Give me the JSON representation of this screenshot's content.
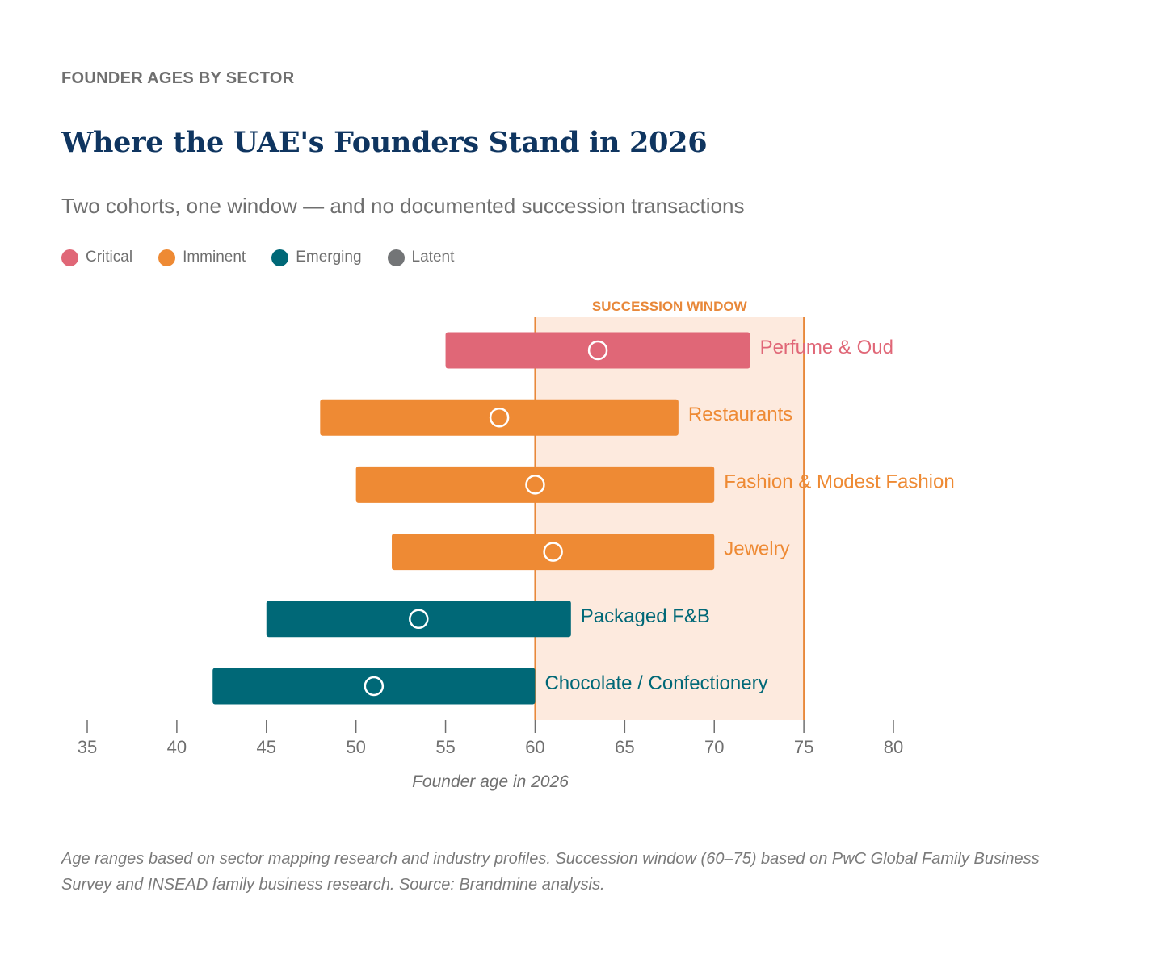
{
  "header": {
    "eyebrow": "FOUNDER AGES BY SECTOR",
    "title": "Where the UAE's Founders Stand in 2026",
    "subtitle": "Two cohorts, one window — and no documented succession transactions"
  },
  "legend": [
    {
      "label": "Critical",
      "color": "#e06777"
    },
    {
      "label": "Imminent",
      "color": "#ee8a34"
    },
    {
      "label": "Emerging",
      "color": "#006877"
    },
    {
      "label": "Latent",
      "color": "#737577"
    }
  ],
  "chart_data": {
    "type": "range-bar",
    "title": "Where the UAE's Founders Stand in 2026",
    "subtitle": "Two cohorts, one window — and no documented succession transactions",
    "xlabel": "Founder age in 2026",
    "xlim": [
      35,
      80
    ],
    "xticks": [
      35,
      40,
      45,
      50,
      55,
      60,
      65,
      70,
      75,
      80
    ],
    "grid": false,
    "legend_position": "top-left",
    "succession_window": {
      "label": "SUCCESSION WINDOW",
      "start": 60,
      "end": 75
    },
    "series": [
      {
        "sector": "Perfume & Oud",
        "category": "Critical",
        "min": 55,
        "max": 72,
        "midpoint": 63.5
      },
      {
        "sector": "Restaurants",
        "category": "Imminent",
        "min": 48,
        "max": 68,
        "midpoint": 58
      },
      {
        "sector": "Fashion & Modest Fashion",
        "category": "Imminent",
        "min": 50,
        "max": 70,
        "midpoint": 60
      },
      {
        "sector": "Jewelry",
        "category": "Imminent",
        "min": 52,
        "max": 70,
        "midpoint": 61
      },
      {
        "sector": "Packaged F&B",
        "category": "Emerging",
        "min": 45,
        "max": 62,
        "midpoint": 53.5
      },
      {
        "sector": "Chocolate / Confectionery",
        "category": "Emerging",
        "min": 42,
        "max": 60,
        "midpoint": 51
      }
    ]
  },
  "colors": {
    "Critical": "#e06777",
    "Imminent": "#ee8a34",
    "Emerging": "#006877",
    "Latent": "#737577",
    "window_fill": "#fdeade",
    "window_line": "#e8883a",
    "axis": "#6f6f6f"
  },
  "footnote": "Age ranges based on sector mapping research and industry profiles. Succession window (60–75) based on PwC Global Family Business Survey and INSEAD family business research. Source: Brandmine analysis."
}
